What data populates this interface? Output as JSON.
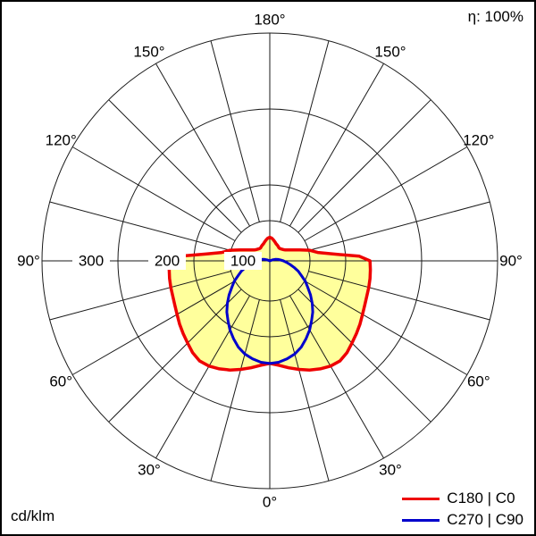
{
  "corner": {
    "efficiency": "η: 100%",
    "units": "cd/klm"
  },
  "legend": [
    {
      "label": "C180 | C0",
      "color": "#ee0000"
    },
    {
      "label": "C270 | C90",
      "color": "#0000cc"
    }
  ],
  "chart_data": {
    "type": "line",
    "coordinate_system": "polar",
    "description": "Luminous intensity distribution curve (photometric polar diagram)",
    "units": "cd/klm",
    "gamma_zero_direction": "down",
    "symmetry": "mirrored left-right",
    "spoke_step_deg": 15,
    "angle_label_step_deg": 30,
    "angle_labels": [
      "0°",
      "30°",
      "60°",
      "90°",
      "120°",
      "150°",
      "180°"
    ],
    "radial_ticks": [
      100,
      200,
      300
    ],
    "radial_tick_labels": [
      "100",
      "200",
      "300"
    ],
    "rmax": 300,
    "grid_color": "#1a1a1a",
    "efficiency": "η: 100%",
    "series": [
      {
        "name": "C180 | C0",
        "color": "#ee0000",
        "fill": "#ffff9c",
        "stroke_width": 3.5,
        "gamma_deg": [
          0,
          5,
          10,
          15,
          20,
          25,
          30,
          35,
          40,
          45,
          50,
          55,
          60,
          65,
          70,
          75,
          80,
          85,
          90,
          93,
          96,
          100,
          105,
          110,
          115,
          120,
          125,
          130,
          135,
          140,
          145,
          150,
          155,
          160,
          165,
          170,
          175,
          180
        ],
        "values_cd_per_klm": [
          135,
          138,
          143,
          148,
          153,
          157,
          160,
          161,
          158,
          153,
          149,
          145,
          141,
          138,
          136,
          135,
          134,
          133,
          132,
          118,
          85,
          64,
          54,
          42,
          34,
          29,
          25,
          23,
          22,
          21,
          21,
          22,
          23,
          24,
          26,
          28,
          30,
          31
        ]
      },
      {
        "name": "C270 | C90",
        "color": "#0000cc",
        "fill": "none",
        "stroke_width": 3,
        "gamma_deg": [
          0,
          5,
          10,
          15,
          20,
          25,
          30,
          35,
          40,
          45,
          50,
          55,
          60,
          65,
          70,
          75,
          80,
          85,
          90,
          95,
          100,
          105,
          110,
          115
        ],
        "values_cd_per_klm": [
          135,
          134,
          131,
          127,
          121,
          113,
          105,
          96,
          88,
          79,
          70,
          61,
          54,
          46,
          40,
          33,
          27,
          22,
          18,
          14,
          11,
          8,
          4,
          0
        ]
      }
    ]
  }
}
